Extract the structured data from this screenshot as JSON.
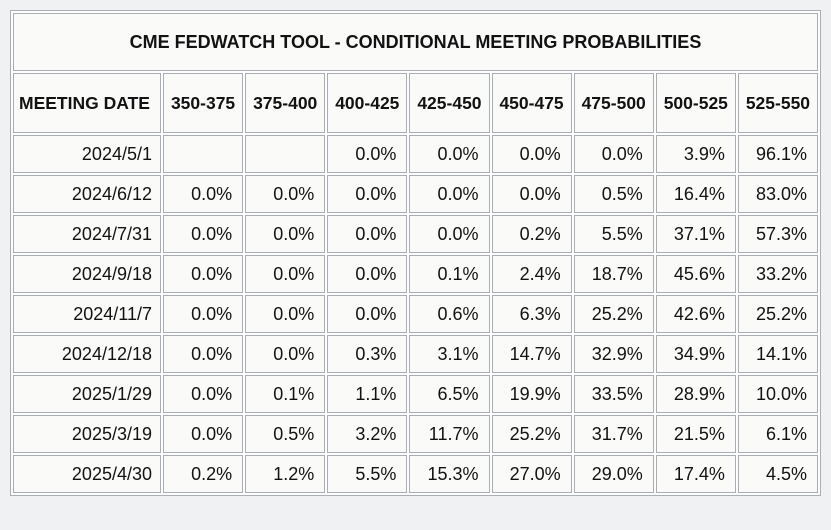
{
  "chart_data": {
    "type": "table",
    "title": "CME FEDWATCH TOOL - CONDITIONAL MEETING PROBABILITIES",
    "columns": [
      "MEETING DATE",
      "350-375",
      "375-400",
      "400-425",
      "425-450",
      "450-475",
      "475-500",
      "500-525",
      "525-550"
    ],
    "rows": [
      {
        "date": "2024/5/1",
        "values": [
          "",
          "",
          "0.0%",
          "0.0%",
          "0.0%",
          "0.0%",
          "3.9%",
          "96.1%"
        ],
        "highlights": [
          "none",
          "none",
          "none",
          "none",
          "none",
          "none",
          "none",
          "cyan"
        ]
      },
      {
        "date": "2024/6/12",
        "values": [
          "0.0%",
          "0.0%",
          "0.0%",
          "0.0%",
          "0.0%",
          "0.5%",
          "16.4%",
          "83.0%"
        ],
        "highlights": [
          "none",
          "none",
          "none",
          "none",
          "none",
          "none",
          "none",
          "cyan"
        ]
      },
      {
        "date": "2024/7/31",
        "values": [
          "0.0%",
          "0.0%",
          "0.0%",
          "0.0%",
          "0.2%",
          "5.5%",
          "37.1%",
          "57.3%"
        ],
        "highlights": [
          "none",
          "none",
          "none",
          "none",
          "none",
          "none",
          "none",
          "cyan"
        ]
      },
      {
        "date": "2024/9/18",
        "values": [
          "0.0%",
          "0.0%",
          "0.0%",
          "0.1%",
          "2.4%",
          "18.7%",
          "45.6%",
          "33.2%"
        ],
        "highlights": [
          "none",
          "none",
          "none",
          "none",
          "none",
          "none",
          "cyan",
          "yellow"
        ]
      },
      {
        "date": "2024/11/7",
        "values": [
          "0.0%",
          "0.0%",
          "0.0%",
          "0.6%",
          "6.3%",
          "25.2%",
          "42.6%",
          "25.2%"
        ],
        "highlights": [
          "none",
          "none",
          "none",
          "none",
          "none",
          "none",
          "cyan",
          "yellow"
        ]
      },
      {
        "date": "2024/12/18",
        "values": [
          "0.0%",
          "0.0%",
          "0.3%",
          "3.1%",
          "14.7%",
          "32.9%",
          "34.9%",
          "14.1%"
        ],
        "highlights": [
          "none",
          "none",
          "none",
          "none",
          "none",
          "none",
          "cyan",
          "yellow"
        ]
      },
      {
        "date": "2025/1/29",
        "values": [
          "0.0%",
          "0.1%",
          "1.1%",
          "6.5%",
          "19.9%",
          "33.5%",
          "28.9%",
          "10.0%"
        ],
        "highlights": [
          "none",
          "none",
          "none",
          "none",
          "none",
          "cyan",
          "yellow",
          "yellow"
        ]
      },
      {
        "date": "2025/3/19",
        "values": [
          "0.0%",
          "0.5%",
          "3.2%",
          "11.7%",
          "25.2%",
          "31.7%",
          "21.5%",
          "6.1%"
        ],
        "highlights": [
          "none",
          "none",
          "none",
          "none",
          "none",
          "cyan",
          "yellow",
          "yellow"
        ]
      },
      {
        "date": "2025/4/30",
        "values": [
          "0.2%",
          "1.2%",
          "5.5%",
          "15.3%",
          "27.0%",
          "29.0%",
          "17.4%",
          "4.5%"
        ],
        "highlights": [
          "none",
          "none",
          "none",
          "none",
          "none",
          "cyan",
          "yellow",
          "yellow"
        ]
      }
    ],
    "colors": {
      "highlight_cyan": "#c7f1f5",
      "highlight_yellow": "#f6f6d9",
      "cell_background": "#fafaf9",
      "border": "#a9adb4",
      "text": "#121212",
      "page_background": "#f0f1f2"
    },
    "layout": {
      "grid": true,
      "legend_position": "none",
      "number_alignment": "right"
    }
  }
}
